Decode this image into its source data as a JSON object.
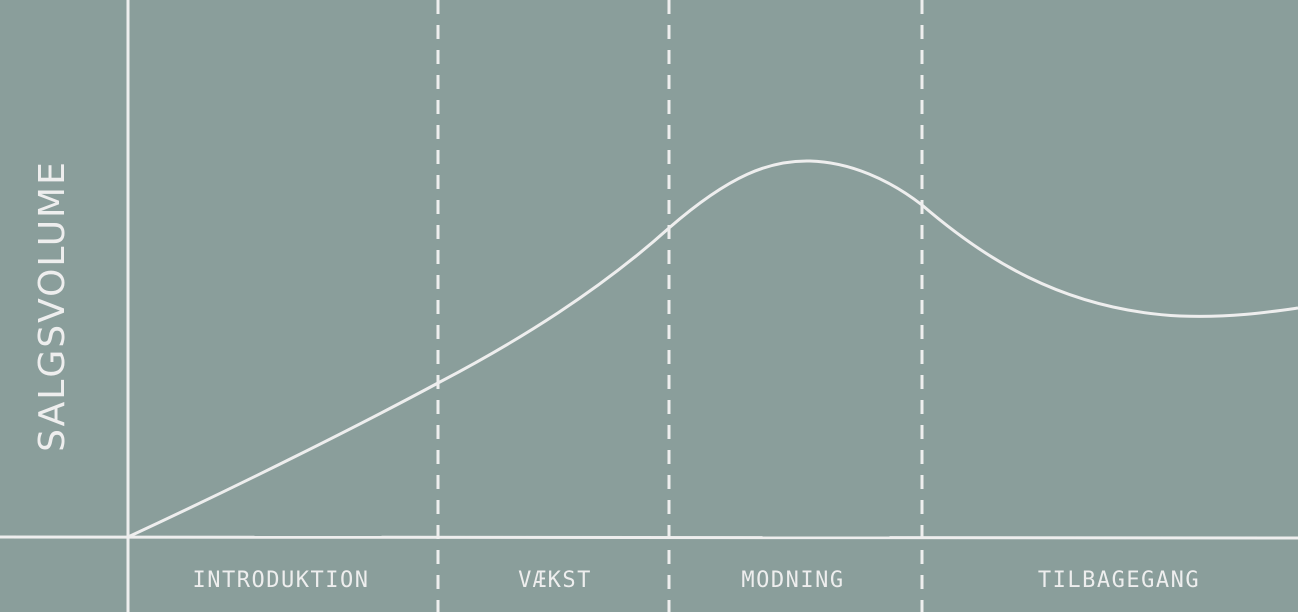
{
  "diagram": {
    "y_axis_label": "SALGSVOLUME",
    "phases": [
      {
        "label": "INTRODUKTION"
      },
      {
        "label": "VÆKST"
      },
      {
        "label": "MODNING"
      },
      {
        "label": "TILBAGEGANG"
      }
    ],
    "colors": {
      "background": "#8a9e9b",
      "line": "#eeeeee",
      "text": "#eeeeee"
    }
  }
}
